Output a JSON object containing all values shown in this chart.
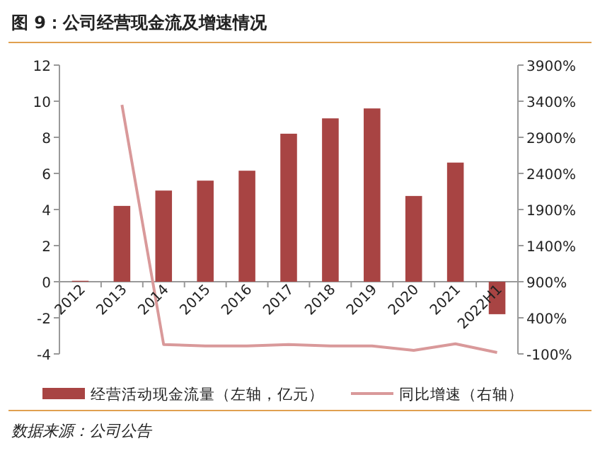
{
  "chart_data": {
    "type": "bar",
    "title": "图 9：公司经营现金流及增速情况",
    "categories": [
      "2012",
      "2013",
      "2014",
      "2015",
      "2016",
      "2017",
      "2018",
      "2019",
      "2020",
      "2021",
      "2022H1"
    ],
    "series": [
      {
        "name": "经营活动现金流量（左轴，亿元）",
        "color": "#a84443",
        "values": [
          0.05,
          4.2,
          5.05,
          5.6,
          6.15,
          8.2,
          9.05,
          9.6,
          4.75,
          6.6,
          -1.8
        ]
      },
      {
        "name": "同比增速（右轴）",
        "type": "line",
        "axis": "y2",
        "color": "#d9999a",
        "values": [
          null,
          3350,
          30,
          10,
          10,
          30,
          10,
          10,
          -50,
          40,
          -80
        ]
      }
    ],
    "ylim": [
      -4,
      12
    ],
    "yticks": [
      -4,
      -2,
      0,
      2,
      4,
      6,
      8,
      10,
      12
    ],
    "y2lim": [
      -100,
      3900
    ],
    "y2ticks": [
      {
        "value": -100,
        "label": "-100%"
      },
      {
        "value": 400,
        "label": "400%"
      },
      {
        "value": 900,
        "label": "900%"
      },
      {
        "value": 1400,
        "label": "1400%"
      },
      {
        "value": 1900,
        "label": "1900%"
      },
      {
        "value": 2400,
        "label": "2400%"
      },
      {
        "value": 2900,
        "label": "2900%"
      },
      {
        "value": 3400,
        "label": "3400%"
      },
      {
        "value": 3900,
        "label": "3900%"
      }
    ],
    "legend": "bottom",
    "grid": false,
    "marker": "none",
    "annotations": [
      "数据来源：公司公告"
    ]
  }
}
